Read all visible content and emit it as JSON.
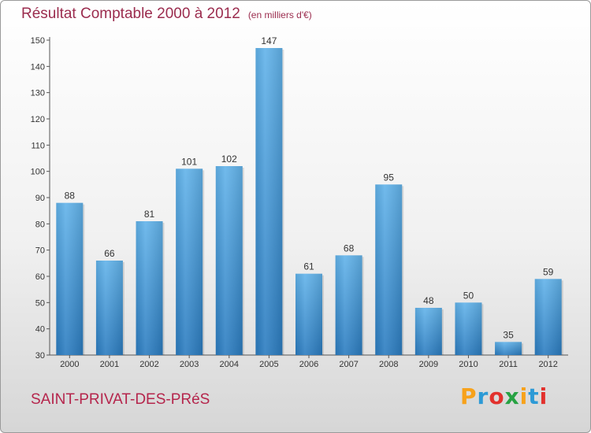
{
  "chart_data": {
    "type": "bar",
    "title": "Résultat Comptable 2000 à 2012",
    "subtitle": "(en milliers d'€)",
    "categories": [
      "2000",
      "2001",
      "2002",
      "2003",
      "2004",
      "2005",
      "2006",
      "2007",
      "2008",
      "2009",
      "2010",
      "2011",
      "2012"
    ],
    "values": [
      88,
      66,
      81,
      101,
      102,
      147,
      61,
      68,
      95,
      48,
      50,
      35,
      59
    ],
    "ylim": [
      30,
      150
    ],
    "yticks": [
      30,
      40,
      50,
      60,
      70,
      80,
      90,
      100,
      110,
      120,
      130,
      140,
      150
    ],
    "xlabel": "",
    "ylabel": "",
    "grid": false
  },
  "location": "SAINT-PRIVAT-DES-PRéS",
  "brand": {
    "letters": [
      "P",
      "r",
      "o",
      "x",
      "i",
      "t",
      "i"
    ],
    "colors": [
      "#f7a21b",
      "#2d9ad6",
      "#e2312d",
      "#27a243",
      "#f7a21b",
      "#2d9ad6",
      "#e2312d"
    ]
  },
  "colors": {
    "title": "#9b2c4e",
    "bar_top": "#62b3ea",
    "bar_bottom": "#2b7cc0"
  }
}
